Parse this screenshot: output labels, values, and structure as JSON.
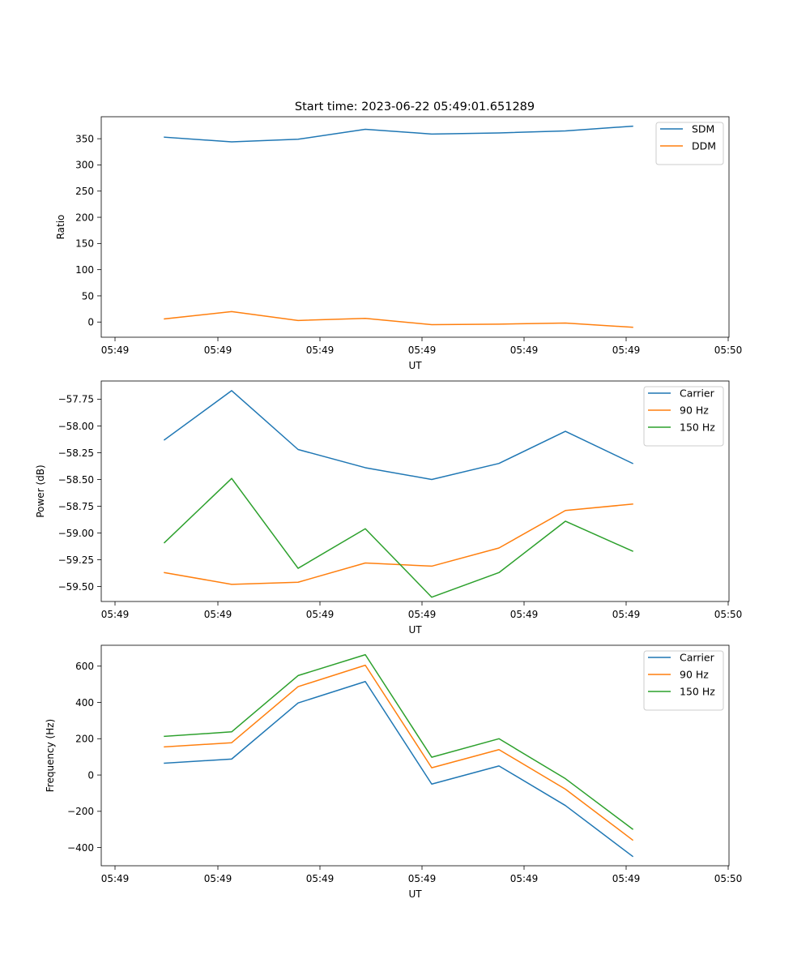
{
  "figure": {
    "title": "Start time: 2023-06-22 05:49:01.651289"
  },
  "chart_data": [
    {
      "type": "line",
      "title": "Start time: 2023-06-22 05:49:01.651289",
      "xlabel": "UT",
      "ylabel": "Ratio",
      "x_tick_labels": [
        "05:49",
        "05:49",
        "05:49",
        "05:49",
        "05:49",
        "05:49",
        "05:50"
      ],
      "y_ticks": [
        0,
        50,
        100,
        150,
        200,
        250,
        300,
        350
      ],
      "ylim": [
        -29,
        392
      ],
      "legend_position": "top-right",
      "grid": false,
      "series": [
        {
          "name": "SDM",
          "color": "#1f77b4",
          "values": [
            353,
            344,
            349,
            368,
            359,
            361,
            365,
            374
          ]
        },
        {
          "name": "DDM",
          "color": "#ff7f0e",
          "values": [
            6,
            20,
            3,
            7,
            -5,
            -4,
            -2,
            -10
          ]
        }
      ]
    },
    {
      "type": "line",
      "xlabel": "UT",
      "ylabel": "Power (dB)",
      "x_tick_labels": [
        "05:49",
        "05:49",
        "05:49",
        "05:49",
        "05:49",
        "05:49",
        "05:50"
      ],
      "y_ticks": [
        -57.75,
        -58.0,
        -58.25,
        -58.5,
        -58.75,
        -59.0,
        -59.25,
        -59.5
      ],
      "y_tick_labels": [
        "−57.75",
        "−58.00",
        "−58.25",
        "−58.50",
        "−58.75",
        "−59.00",
        "−59.25",
        "−59.50"
      ],
      "ylim": [
        -59.64,
        -57.58
      ],
      "legend_position": "top-right",
      "grid": false,
      "series": [
        {
          "name": "Carrier",
          "color": "#1f77b4",
          "values": [
            -58.13,
            -57.67,
            -58.22,
            -58.39,
            -58.5,
            -58.35,
            -58.05,
            -58.35
          ]
        },
        {
          "name": "90 Hz",
          "color": "#ff7f0e",
          "values": [
            -59.37,
            -59.48,
            -59.46,
            -59.28,
            -59.31,
            -59.14,
            -58.79,
            -58.73
          ]
        },
        {
          "name": "150 Hz",
          "color": "#2ca02c",
          "values": [
            -59.09,
            -58.49,
            -59.33,
            -58.96,
            -59.6,
            -59.37,
            -58.89,
            -59.17
          ]
        }
      ]
    },
    {
      "type": "line",
      "xlabel": "UT",
      "ylabel": "Frequency (Hz)",
      "x_tick_labels": [
        "05:49",
        "05:49",
        "05:49",
        "05:49",
        "05:49",
        "05:49",
        "05:50"
      ],
      "y_ticks": [
        600,
        400,
        200,
        0,
        -200,
        -400
      ],
      "y_tick_labels": [
        "600",
        "400",
        "200",
        "0",
        "−200",
        "−400"
      ],
      "ylim": [
        -500,
        715
      ],
      "legend_position": "top-right",
      "grid": false,
      "series": [
        {
          "name": "Carrier",
          "color": "#1f77b4",
          "values": [
            65,
            88,
            397,
            515,
            -50,
            50,
            -168,
            -448
          ]
        },
        {
          "name": "90 Hz",
          "color": "#ff7f0e",
          "values": [
            155,
            178,
            487,
            605,
            40,
            140,
            -78,
            -358
          ]
        },
        {
          "name": "150 Hz",
          "color": "#2ca02c",
          "values": [
            213,
            238,
            548,
            663,
            98,
            200,
            -20,
            -298
          ]
        }
      ]
    }
  ]
}
